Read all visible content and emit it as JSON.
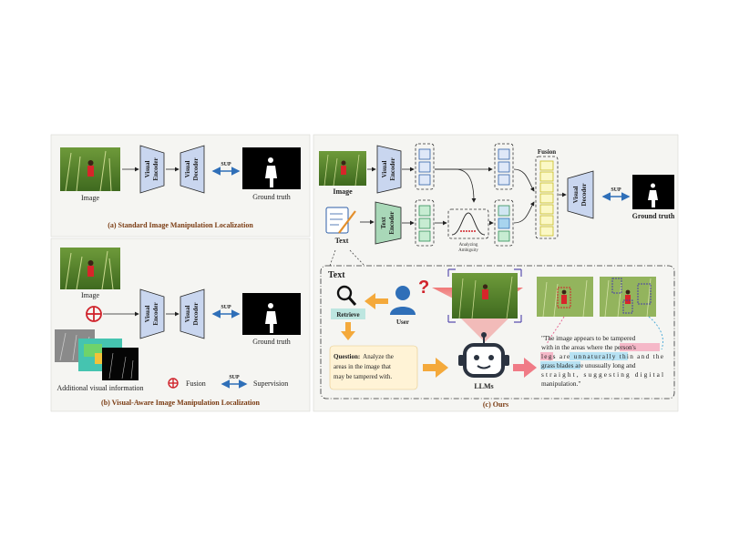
{
  "panel_a": {
    "image_label": "Image",
    "visual_encoder": [
      "Visual",
      "Encoder"
    ],
    "visual_decoder": [
      "Visual",
      "Decoder"
    ],
    "sup": "SUP",
    "ground_truth": "Ground truth",
    "caption": "(a) Standard Image Manipulation Localization"
  },
  "panel_b": {
    "image_label": "Image",
    "visual_encoder": [
      "Visual",
      "Encoder"
    ],
    "visual_decoder": [
      "Visual",
      "Decoder"
    ],
    "sup": "SUP",
    "ground_truth": "Ground truth",
    "additional": "Additional visual information",
    "legend_fusion": "Fusion",
    "legend_supervision": "Supervision",
    "legend_sup": "SUP",
    "caption": "(b) Visual-Aware Image Manipulation Localization"
  },
  "panel_c": {
    "image_label": "Image",
    "visual_encoder": [
      "Visual",
      "Encoder"
    ],
    "text_encoder": [
      "Text",
      "Encoder"
    ],
    "text_label": "Text",
    "analyzing": [
      "Analyzing",
      "Ambiguity"
    ],
    "fusion": "Fusion",
    "visual_decoder": [
      "Visual",
      "Decoder"
    ],
    "sup": "SUP",
    "ground_truth": "Ground truth",
    "text_section_title": "Text",
    "retrieve": "Retrieve",
    "user": "User",
    "question_bold": "Question:",
    "question_lines": [
      "Analyze the",
      "areas in the image that",
      "may be tampered with."
    ],
    "llms": "LLMs",
    "answer_lines": [
      "\"The image appears to be tampered",
      "with in the areas where the person's",
      "legs are unnaturally thin and the",
      "grass blades are unusually long and",
      "straight, suggesting digital",
      "manipulation.\""
    ],
    "caption": "(c) Ours"
  },
  "colors": {
    "encoder_fill": "#c9d6ef",
    "text_encoder_fill": "#a9d8b8",
    "caption_text": "#7a3b12",
    "sup_arrow": "#2f6fb8",
    "orange_arrow": "#f4a93b",
    "pink_arrow": "#f07b86",
    "fusion_yellow": "#f3ef9a",
    "panel_bg": "#f5f5f2"
  }
}
